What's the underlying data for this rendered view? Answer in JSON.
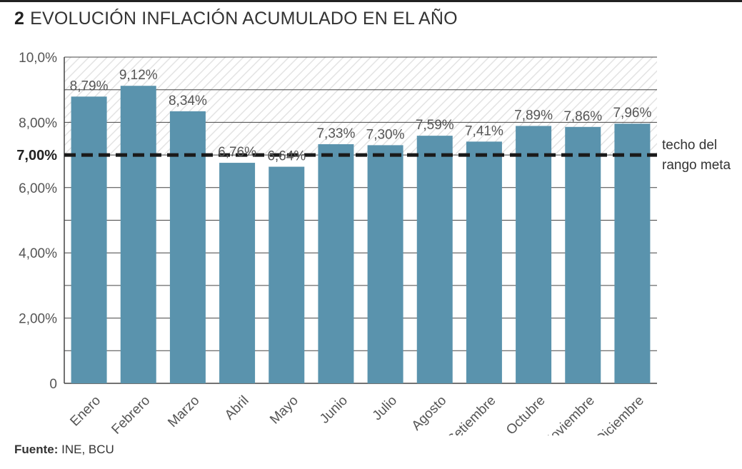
{
  "header": {
    "number": "2",
    "title": "EVOLUCIÓN INFLACIÓN ACUMULADO EN EL AÑO"
  },
  "footer": {
    "source_label": "Fuente:",
    "source_text": " INE, BCU"
  },
  "colors": {
    "bar": "#5a93ad",
    "grid": "#444444",
    "reference_line": "#1a1a1a",
    "hatch": "#e3e3e3"
  },
  "chart_data": {
    "type": "bar",
    "title": "EVOLUCIÓN INFLACIÓN ACUMULADO EN EL AÑO",
    "categories": [
      "Enero",
      "Febrero",
      "Marzo",
      "Abril",
      "Mayo",
      "Junio",
      "Julio",
      "Agosto",
      "Setiembre",
      "Octubre",
      "Noviembre",
      "Diciembre"
    ],
    "values": [
      8.79,
      9.12,
      8.34,
      6.76,
      6.64,
      7.33,
      7.3,
      7.59,
      7.41,
      7.89,
      7.86,
      7.96
    ],
    "value_labels": [
      "8,79%",
      "9,12%",
      "8,34%",
      "6,76%",
      "6,64%",
      "7,33%",
      "7,30%",
      "7,59%",
      "7,41%",
      "7,89%",
      "7,86%",
      "7,96%"
    ],
    "ylim": [
      0,
      10
    ],
    "yticks": [
      0,
      2,
      4,
      6,
      8,
      10
    ],
    "ytick_labels": [
      "0",
      "2,00%",
      "4,00%",
      "6,00%",
      "8,00%",
      "10,0%"
    ],
    "minor_gridlines": [
      1,
      3,
      5,
      7,
      9
    ],
    "grid": true,
    "hatched_band_above": 7,
    "xlabel": "",
    "ylabel": "",
    "reference_line": {
      "value": 7,
      "tick_label": "7,00%",
      "label_lines": [
        "techo del",
        "rango meta"
      ],
      "style": "dashed"
    }
  }
}
